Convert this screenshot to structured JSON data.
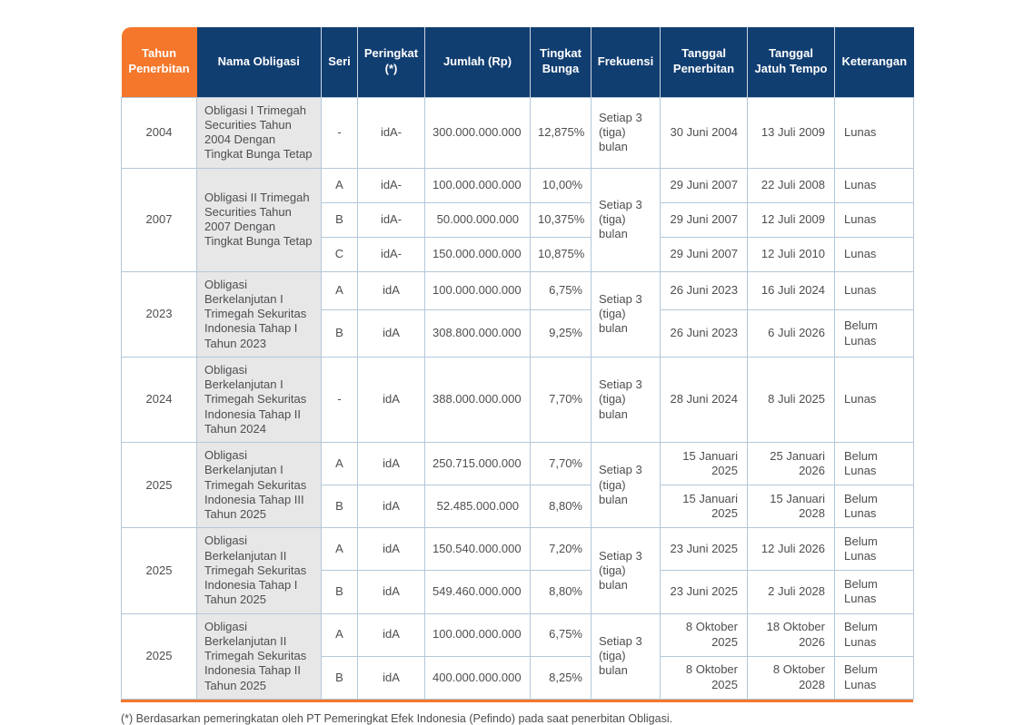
{
  "colors": {
    "header_navy": "#113e71",
    "header_orange": "#f4772b",
    "name_col_bg": "#e7e7e8",
    "grid_line": "#b3c8da",
    "text": "#4d4e50",
    "bottom_border": "#f4772b"
  },
  "footnote": "(*) Berdasarkan pemeringkatan oleh PT Pemeringkat Efek Indonesia (Pefindo) pada saat penerbitan Obligasi.",
  "table": {
    "columns": [
      {
        "key": "year",
        "label": "Tahun Penerbitan"
      },
      {
        "key": "name",
        "label": "Nama Obligasi"
      },
      {
        "key": "seri",
        "label": "Seri"
      },
      {
        "key": "rating",
        "label": "Peringkat (*)"
      },
      {
        "key": "amount",
        "label": "Jumlah (Rp)"
      },
      {
        "key": "rate",
        "label": "Tingkat Bunga"
      },
      {
        "key": "freq",
        "label": "Frekuensi"
      },
      {
        "key": "issue",
        "label": "Tanggal Penerbitan"
      },
      {
        "key": "maturity",
        "label": "Tanggal Jatuh Tempo"
      },
      {
        "key": "status",
        "label": "Keterangan"
      }
    ],
    "groups": [
      {
        "year": "2004",
        "name": "Obligasi I Trimegah Securities Tahun 2004 Dengan Tingkat Bunga Tetap",
        "frequency": "Setiap 3 (tiga) bulan",
        "rows": [
          {
            "seri": "-",
            "rating": "idA-",
            "amount": "300.000.000.000",
            "rate": "12,875%",
            "issue": "30 Juni 2004",
            "maturity": "13 Juli 2009",
            "status": "Lunas"
          }
        ]
      },
      {
        "year": "2007",
        "name": "Obligasi II Trimegah Securities Tahun 2007 Dengan Tingkat Bunga Tetap",
        "frequency": "Setiap 3 (tiga) bulan",
        "rows": [
          {
            "seri": "A",
            "rating": "idA-",
            "amount": "100.000.000.000",
            "rate": "10,00%",
            "issue": "29 Juni 2007",
            "maturity": "22 Juli 2008",
            "status": "Lunas"
          },
          {
            "seri": "B",
            "rating": "idA-",
            "amount": "50.000.000.000",
            "rate": "10,375%",
            "issue": "29 Juni 2007",
            "maturity": "12 Juli 2009",
            "status": "Lunas"
          },
          {
            "seri": "C",
            "rating": "idA-",
            "amount": "150.000.000.000",
            "rate": "10,875%",
            "issue": "29 Juni 2007",
            "maturity": "12 Juli 2010",
            "status": "Lunas"
          }
        ]
      },
      {
        "year": "2023",
        "name": "Obligasi Berkelanjutan I Trimegah Sekuritas Indonesia Tahap I Tahun 2023",
        "frequency": "Setiap 3 (tiga) bulan",
        "rows": [
          {
            "seri": "A",
            "rating": "idA",
            "amount": "100.000.000.000",
            "rate": "6,75%",
            "issue": "26 Juni 2023",
            "maturity": "16 Juli 2024",
            "status": "Lunas"
          },
          {
            "seri": "B",
            "rating": "idA",
            "amount": "308.800.000.000",
            "rate": "9,25%",
            "issue": "26 Juni 2023",
            "maturity": "6 Juli 2026",
            "status": "Belum Lunas"
          }
        ]
      },
      {
        "year": "2024",
        "name": "Obligasi Berkelanjutan I Trimegah Sekuritas Indonesia Tahap II Tahun 2024",
        "frequency": "Setiap 3 (tiga) bulan",
        "rows": [
          {
            "seri": "-",
            "rating": "idA",
            "amount": "388.000.000.000",
            "rate": "7,70%",
            "issue": "28 Juni 2024",
            "maturity": "8 Juli 2025",
            "status": "Lunas"
          }
        ]
      },
      {
        "year": "2025",
        "name": "Obligasi Berkelanjutan I Trimegah Sekuritas Indonesia Tahap III Tahun 2025",
        "frequency": "Setiap 3 (tiga) bulan",
        "rows": [
          {
            "seri": "A",
            "rating": "idA",
            "amount": "250.715.000.000",
            "rate": "7,70%",
            "issue": "15 Januari 2025",
            "maturity": "25 Januari 2026",
            "status": "Belum Lunas"
          },
          {
            "seri": "B",
            "rating": "idA",
            "amount": "52.485.000.000",
            "rate": "8,80%",
            "issue": "15 Januari 2025",
            "maturity": "15 Januari 2028",
            "status": "Belum Lunas"
          }
        ]
      },
      {
        "year": "2025",
        "name": "Obligasi Berkelanjutan II Trimegah Sekuritas Indonesia Tahap I Tahun 2025",
        "frequency": "Setiap 3 (tiga) bulan",
        "rows": [
          {
            "seri": "A",
            "rating": "idA",
            "amount": "150.540.000.000",
            "rate": "7,20%",
            "issue": "23 Juni 2025",
            "maturity": "12 Juli 2026",
            "status": "Belum Lunas"
          },
          {
            "seri": "B",
            "rating": "idA",
            "amount": "549.460.000.000",
            "rate": "8,80%",
            "issue": "23 Juni 2025",
            "maturity": "2 Juli 2028",
            "status": "Belum Lunas"
          }
        ]
      },
      {
        "year": "2025",
        "name": "Obligasi Berkelanjutan II Trimegah Sekuritas Indonesia Tahap II Tahun 2025",
        "frequency": "Setiap 3 (tiga) bulan",
        "rows": [
          {
            "seri": "A",
            "rating": "idA",
            "amount": "100.000.000.000",
            "rate": "6,75%",
            "issue": "8 Oktober 2025",
            "maturity": "18 Oktober 2026",
            "status": "Belum Lunas"
          },
          {
            "seri": "B",
            "rating": "idA",
            "amount": "400.000.000.000",
            "rate": "8,25%",
            "issue": "8 Oktober 2025",
            "maturity": "8 Oktober 2028",
            "status": "Belum Lunas"
          }
        ]
      }
    ]
  }
}
